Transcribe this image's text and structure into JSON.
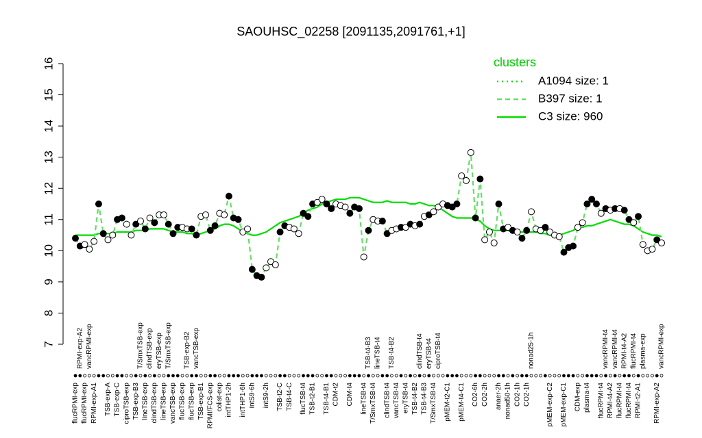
{
  "chart_data": {
    "type": "line",
    "title": "SAOUHSC_02258 [2091135,2091761,+1]",
    "ylim": [
      7,
      16
    ],
    "yticks": [
      7,
      8,
      9,
      10,
      11,
      12,
      13,
      14,
      15,
      16
    ],
    "legend_title": "clusters",
    "legend_position": "topright",
    "categories": [
      "flucRPMI-exp",
      "RPMI-exp-A2",
      "flucRPMI-exp",
      "vancRPMI-exp",
      "RPMI-exp-A1",
      null,
      null,
      "TSB-exp-A",
      null,
      "TSB-exp-C",
      null,
      "ciproTSB-exp",
      null,
      "TSB-exp-B3",
      "T/SmxTSB-exp",
      "lineTSB-exp",
      "clindTSB-exp",
      "clindTSB-exp",
      "eryTSB-exp",
      "lineTSB-exp",
      "T/SmxTSB-exp",
      "vancTSB-exp",
      null,
      "flucTSB-exp",
      "TSB-exp-B2",
      "flucTSB-exp",
      "vancTSB-exp",
      "TSB-exp-B1",
      null,
      "RPMI/FCS-exp",
      null,
      "colist-exp",
      null,
      "intTHP1-2h",
      null,
      null,
      "intTHP1-6h",
      null,
      "intS9-6h",
      null,
      null,
      "intS9-2h",
      null,
      null,
      "TSB-t2-C",
      null,
      "TSB-t4-C",
      null,
      null,
      "flucTSB-t4",
      null,
      "TSB-t2-B1",
      null,
      null,
      "TSB-t4-B1",
      null,
      "CDM-t2",
      null,
      null,
      "CDM-t4",
      null,
      null,
      "lineTSB-t4",
      "TSB-t4-B3",
      "T/SmxTSB-t4",
      "lineTSB-t4",
      null,
      "clindTSB-t4",
      "TSB-t4-B2",
      "vancTSB-t4",
      null,
      "eryTSB-t4",
      null,
      "TSB-t4-B2",
      "clindTSB-t4",
      "TSB-t4-B3",
      "eryTSB-t4",
      "T/SmxTSB-t4",
      "ciproTSB-t4",
      null,
      "pMEM-t2-C1",
      null,
      null,
      "pMEM-t4-C1",
      null,
      null,
      "CO2-6h",
      null,
      "CO2-2h",
      null,
      null,
      "anaer-2h",
      null,
      "nonad50-1h",
      null,
      "CO2-1h",
      null,
      "CO2-1h",
      "nonad25-1h",
      null,
      null,
      null,
      "pMEM-exp-C2",
      null,
      null,
      "pMEM-exp-C1",
      null,
      null,
      "CDM-exp",
      null,
      "plasma-t4",
      null,
      null,
      "flucRPMI-t4",
      "vancRPMI-t4",
      "RPMI-t4-A2",
      "vancRPMI-t4",
      "flucRPMI-t4",
      "RPMI-t4-A2",
      "flucRPMI-t4",
      "flucRPMI-t4",
      "RPMI-t2-A1",
      "plasma-exp",
      null,
      null,
      "RPMI-exp-A2",
      "vancRPMI-exp"
    ],
    "point_filled": [
      true,
      true,
      false,
      false,
      false,
      true,
      true,
      false,
      false,
      true,
      true,
      false,
      false,
      true,
      false,
      true,
      false,
      true,
      false,
      false,
      true,
      true,
      true,
      false,
      false,
      true,
      true,
      false,
      false,
      true,
      true,
      false,
      false,
      true,
      true,
      true,
      false,
      false,
      true,
      true,
      true,
      false,
      false,
      false,
      true,
      true,
      false,
      false,
      false,
      true,
      true,
      true,
      false,
      false,
      true,
      true,
      false,
      false,
      false,
      true,
      true,
      true,
      false,
      true,
      false,
      false,
      true,
      true,
      false,
      false,
      true,
      false,
      true,
      false,
      true,
      false,
      true,
      false,
      false,
      false,
      true,
      true,
      true,
      false,
      false,
      false,
      true,
      true,
      false,
      false,
      false,
      true,
      true,
      false,
      true,
      false,
      true,
      true,
      false,
      false,
      false,
      true,
      false,
      false,
      false,
      true,
      true,
      true,
      false,
      false,
      true,
      true,
      true,
      false,
      true,
      false,
      true,
      false,
      true,
      true,
      false,
      true,
      false,
      false,
      false,
      true,
      false
    ],
    "series": [
      {
        "name": "A1094 size: 1",
        "color": "#00dd00",
        "style": "dotted"
      },
      {
        "name": "B397 size: 1",
        "color": "#66dd66",
        "style": "dashed",
        "values": [
          10.4,
          10.15,
          10.2,
          10.05,
          10.3,
          11.5,
          10.55,
          10.35,
          10.5,
          11.0,
          11.05,
          10.85,
          10.5,
          10.85,
          10.95,
          10.7,
          11.05,
          10.9,
          11.15,
          11.15,
          10.85,
          10.55,
          10.75,
          10.75,
          10.7,
          10.7,
          10.5,
          11.1,
          11.15,
          10.65,
          10.8,
          11.2,
          11.15,
          11.75,
          11.05,
          11.0,
          10.6,
          10.7,
          9.4,
          9.2,
          9.15,
          9.45,
          9.65,
          9.55,
          10.6,
          10.8,
          10.75,
          10.7,
          10.55,
          11.2,
          11.1,
          11.5,
          11.55,
          11.65,
          11.5,
          11.35,
          11.5,
          11.45,
          11.4,
          11.2,
          11.4,
          11.35,
          9.8,
          10.65,
          11.0,
          10.95,
          10.95,
          10.55,
          10.65,
          10.7,
          10.75,
          10.75,
          10.85,
          10.8,
          10.85,
          11.1,
          11.15,
          11.25,
          11.4,
          11.5,
          11.45,
          11.4,
          11.5,
          12.4,
          12.25,
          13.15,
          11.05,
          12.3,
          10.35,
          10.6,
          10.25,
          11.5,
          10.7,
          10.75,
          10.65,
          10.6,
          10.4,
          10.65,
          11.25,
          10.7,
          10.65,
          10.75,
          10.6,
          10.5,
          10.45,
          9.95,
          10.1,
          10.15,
          10.75,
          10.9,
          11.5,
          11.65,
          11.5,
          11.2,
          11.35,
          11.3,
          11.35,
          11.35,
          11.3,
          11.0,
          10.9,
          11.1,
          10.2,
          10.0,
          10.05,
          10.35,
          10.25
        ]
      },
      {
        "name": "C3 size: 960",
        "color": "#00dd00",
        "style": "solid",
        "values": [
          10.5,
          10.5,
          10.5,
          10.5,
          10.5,
          10.55,
          10.55,
          10.55,
          10.55,
          10.6,
          10.6,
          10.6,
          10.6,
          10.65,
          10.65,
          10.65,
          10.7,
          10.7,
          10.7,
          10.7,
          10.65,
          10.6,
          10.6,
          10.6,
          10.55,
          10.55,
          10.5,
          10.55,
          10.6,
          10.65,
          10.7,
          10.8,
          10.85,
          10.85,
          10.8,
          10.7,
          10.6,
          10.55,
          10.5,
          10.5,
          10.55,
          10.6,
          10.7,
          10.8,
          10.9,
          10.95,
          11.0,
          11.05,
          11.1,
          11.2,
          11.3,
          11.35,
          11.4,
          11.5,
          11.55,
          11.6,
          11.65,
          11.65,
          11.65,
          11.7,
          11.7,
          11.7,
          11.65,
          11.6,
          11.55,
          11.55,
          11.55,
          11.6,
          11.55,
          11.55,
          11.55,
          11.55,
          11.5,
          11.5,
          11.55,
          11.5,
          11.45,
          11.45,
          11.4,
          11.3,
          11.2,
          11.1,
          11.05,
          11.05,
          11.05,
          11.05,
          11.0,
          10.95,
          10.8,
          10.7,
          10.65,
          10.65,
          10.65,
          10.65,
          10.6,
          10.6,
          10.6,
          10.6,
          10.6,
          10.6,
          10.55,
          10.55,
          10.5,
          10.5,
          10.5,
          10.55,
          10.6,
          10.65,
          10.75,
          10.75,
          10.8,
          10.8,
          10.85,
          10.9,
          10.95,
          11.0,
          10.95,
          10.9,
          10.85,
          10.85,
          10.8,
          10.7,
          10.6,
          10.55,
          10.5,
          10.5,
          10.45
        ]
      }
    ]
  }
}
